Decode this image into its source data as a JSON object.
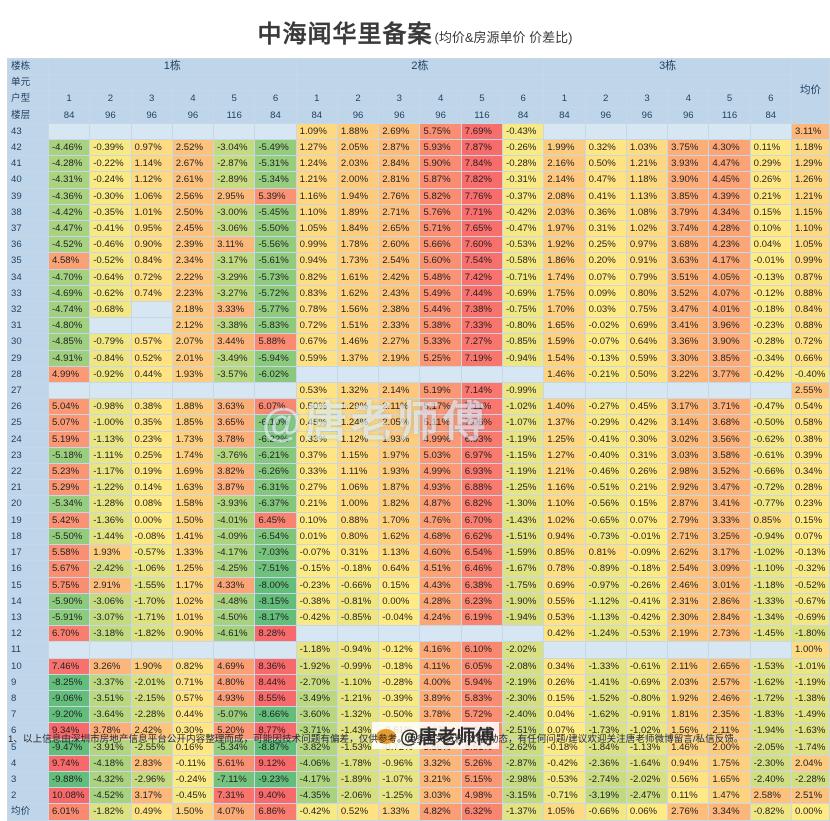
{
  "title": {
    "main": "中海闻华里备案",
    "sub": "(均价&房源单价 价差比)"
  },
  "header": {
    "row_labels": [
      "楼栋",
      "单元",
      "户型",
      "楼层"
    ],
    "buildings": [
      "1栋",
      "2栋",
      "3栋"
    ],
    "units": [
      "1",
      "2",
      "3",
      "4",
      "5",
      "6"
    ],
    "areas": [
      "84",
      "96",
      "96",
      "96",
      "116",
      "84"
    ],
    "avg_col": "均价"
  },
  "rows": [
    {
      "floor": "43",
      "cells": [
        null,
        null,
        null,
        null,
        null,
        null,
        "1.09%",
        "1.88%",
        "2.69%",
        "5.75%",
        "7.69%",
        "-0.43%",
        null,
        null,
        null,
        null,
        null,
        null
      ],
      "avg": "3.11%"
    },
    {
      "floor": "42",
      "cells": [
        "-4.46%",
        "-0.39%",
        "0.97%",
        "2.52%",
        "-3.04%",
        "-5.49%",
        "1.27%",
        "2.05%",
        "2.87%",
        "5.93%",
        "7.87%",
        "-0.26%",
        "1.99%",
        "0.32%",
        "1.03%",
        "3.75%",
        "4.30%",
        "0.11%"
      ],
      "avg": "1.18%"
    },
    {
      "floor": "41",
      "cells": [
        "-4.28%",
        "-0.22%",
        "1.14%",
        "2.67%",
        "-2.87%",
        "-5.31%",
        "1.24%",
        "2.03%",
        "2.84%",
        "5.90%",
        "7.84%",
        "-0.28%",
        "2.16%",
        "0.50%",
        "1.21%",
        "3.93%",
        "4.47%",
        "0.29%"
      ],
      "avg": "1.29%"
    },
    {
      "floor": "40",
      "cells": [
        "-4.31%",
        "-0.24%",
        "1.12%",
        "2.61%",
        "-2.89%",
        "-5.34%",
        "1.21%",
        "2.00%",
        "2.81%",
        "5.87%",
        "7.82%",
        "-0.31%",
        "2.14%",
        "0.47%",
        "1.18%",
        "3.90%",
        "4.45%",
        "0.26%"
      ],
      "avg": "1.26%"
    },
    {
      "floor": "39",
      "cells": [
        "-4.36%",
        "-0.30%",
        "1.06%",
        "2.56%",
        "2.95%",
        "5.39%",
        "1.16%",
        "1.94%",
        "2.76%",
        "5.82%",
        "7.76%",
        "-0.37%",
        "2.08%",
        "0.41%",
        "1.13%",
        "3.85%",
        "4.39%",
        "0.21%"
      ],
      "avg": "1.21%"
    },
    {
      "floor": "38",
      "cells": [
        "-4.42%",
        "-0.35%",
        "1.01%",
        "2.50%",
        "-3.00%",
        "-5.45%",
        "1.10%",
        "1.89%",
        "2.71%",
        "5.76%",
        "7.71%",
        "-0.42%",
        "2.03%",
        "0.36%",
        "1.08%",
        "3.79%",
        "4.34%",
        "0.15%"
      ],
      "avg": "1.15%"
    },
    {
      "floor": "37",
      "cells": [
        "-4.47%",
        "-0.41%",
        "0.95%",
        "2.45%",
        "-3.06%",
        "-5.50%",
        "1.05%",
        "1.84%",
        "2.65%",
        "5.71%",
        "7.65%",
        "-0.47%",
        "1.97%",
        "0.31%",
        "1.02%",
        "3.74%",
        "4.28%",
        "0.10%"
      ],
      "avg": "1.10%"
    },
    {
      "floor": "36",
      "cells": [
        "-4.52%",
        "-0.46%",
        "0.90%",
        "2.39%",
        "3.11%",
        "-5.56%",
        "0.99%",
        "1.78%",
        "2.60%",
        "5.66%",
        "7.60%",
        "-0.53%",
        "1.92%",
        "0.25%",
        "0.97%",
        "3.68%",
        "4.23%",
        "0.04%"
      ],
      "avg": "1.05%"
    },
    {
      "floor": "35",
      "cells": [
        "4.58%",
        "-0.52%",
        "0.84%",
        "2.34%",
        "-3.17%",
        "-5.61%",
        "0.94%",
        "1.73%",
        "2.54%",
        "5.60%",
        "7.54%",
        "-0.58%",
        "1.86%",
        "0.20%",
        "0.91%",
        "3.63%",
        "4.17%",
        "-0.01%"
      ],
      "avg": "0.99%"
    },
    {
      "floor": "34",
      "cells": [
        "-4.70%",
        "-0.64%",
        "0.72%",
        "2.22%",
        "-3.29%",
        "-5.73%",
        "0.82%",
        "1.61%",
        "2.42%",
        "5.48%",
        "7.42%",
        "-0.71%",
        "1.74%",
        "0.07%",
        "0.79%",
        "3.51%",
        "4.05%",
        "-0.13%"
      ],
      "avg": "0.87%"
    },
    {
      "floor": "33",
      "cells": [
        "-4.69%",
        "-0.62%",
        "0.74%",
        "2.23%",
        "-3.27%",
        "-5.72%",
        "0.83%",
        "1.62%",
        "2.43%",
        "5.49%",
        "7.44%",
        "-0.69%",
        "1.75%",
        "0.09%",
        "0.80%",
        "3.52%",
        "4.07%",
        "-0.12%"
      ],
      "avg": "0.88%"
    },
    {
      "floor": "32",
      "cells": [
        "-4.74%",
        "-0.68%",
        null,
        "2.18%",
        "3.33%",
        "-5.77%",
        "0.78%",
        "1.56%",
        "2.38%",
        "5.44%",
        "7.38%",
        "-0.75%",
        "1.70%",
        "0.03%",
        "0.75%",
        "3.47%",
        "4.01%",
        "-0.18%"
      ],
      "avg": "0.84%"
    },
    {
      "floor": "31",
      "cells": [
        "-4.80%",
        null,
        null,
        "2.12%",
        "-3.38%",
        "-5.83%",
        "0.72%",
        "1.51%",
        "2.33%",
        "5.38%",
        "7.33%",
        "-0.80%",
        "1.65%",
        "-0.02%",
        "0.69%",
        "3.41%",
        "3.96%",
        "-0.23%"
      ],
      "avg": "0.88%"
    },
    {
      "floor": "30",
      "cells": [
        "-4.85%",
        "-0.79%",
        "0.57%",
        "2.07%",
        "3.44%",
        "5.88%",
        "0.67%",
        "1.46%",
        "2.27%",
        "5.33%",
        "7.27%",
        "-0.85%",
        "1.59%",
        "-0.07%",
        "0.64%",
        "3.36%",
        "3.90%",
        "-0.28%"
      ],
      "avg": "0.72%"
    },
    {
      "floor": "29",
      "cells": [
        "-4.91%",
        "-0.84%",
        "0.52%",
        "2.01%",
        "-3.49%",
        "-5.94%",
        "0.59%",
        "1.37%",
        "2.19%",
        "5.25%",
        "7.19%",
        "-0.94%",
        "1.54%",
        "-0.13%",
        "0.59%",
        "3.30%",
        "3.85%",
        "-0.34%"
      ],
      "avg": "0.66%"
    },
    {
      "floor": "28",
      "cells": [
        "4.99%",
        "-0.92%",
        "0.44%",
        "1.93%",
        "-3.57%",
        "-6.02%",
        null,
        null,
        null,
        null,
        null,
        null,
        "1.46%",
        "-0.21%",
        "0.50%",
        "3.22%",
        "3.77%",
        "-0.42%"
      ],
      "avg": "-0.40%"
    },
    {
      "floor": "27",
      "cells": [
        null,
        null,
        null,
        null,
        null,
        null,
        "0.53%",
        "1.32%",
        "2.14%",
        "5.19%",
        "7.14%",
        "-0.99%",
        null,
        null,
        null,
        null,
        null,
        null
      ],
      "avg": "2.55%"
    },
    {
      "floor": "26",
      "cells": [
        "5.04%",
        "-0.98%",
        "0.38%",
        "1.88%",
        "3.63%",
        "6.07%",
        "0.50%",
        "1.29%",
        "2.11%",
        "5.17%",
        "7.11%",
        "-1.02%",
        "1.40%",
        "-0.27%",
        "0.45%",
        "3.17%",
        "3.71%",
        "-0.47%"
      ],
      "avg": "0.54%"
    },
    {
      "floor": "25",
      "cells": [
        "5.07%",
        "-1.00%",
        "0.35%",
        "1.85%",
        "3.65%",
        "-6.10%",
        "0.45%",
        "1.24%",
        "2.05%",
        "5.11%",
        "7.06%",
        "-1.07%",
        "1.37%",
        "-0.29%",
        "0.42%",
        "3.14%",
        "3.68%",
        "-0.50%"
      ],
      "avg": "0.58%"
    },
    {
      "floor": "24",
      "cells": [
        "5.19%",
        "-1.13%",
        "0.23%",
        "1.73%",
        "3.78%",
        "-6.22%",
        "0.33%",
        "1.12%",
        "1.93%",
        "4.99%",
        "6.93%",
        "-1.19%",
        "1.25%",
        "-0.41%",
        "0.30%",
        "3.02%",
        "3.56%",
        "-0.62%"
      ],
      "avg": "0.38%"
    },
    {
      "floor": "23",
      "cells": [
        "-5.18%",
        "-1.11%",
        "0.25%",
        "1.74%",
        "-3.76%",
        "-6.21%",
        "0.37%",
        "1.15%",
        "1.97%",
        "5.03%",
        "6.97%",
        "-1.15%",
        "1.27%",
        "-0.40%",
        "0.31%",
        "3.03%",
        "3.58%",
        "-0.61%"
      ],
      "avg": "0.39%"
    },
    {
      "floor": "22",
      "cells": [
        "5.23%",
        "-1.17%",
        "0.19%",
        "1.69%",
        "3.82%",
        "-6.26%",
        "0.33%",
        "1.11%",
        "1.93%",
        "4.99%",
        "6.93%",
        "-1.19%",
        "1.21%",
        "-0.46%",
        "0.26%",
        "2.98%",
        "3.52%",
        "-0.66%"
      ],
      "avg": "0.34%"
    },
    {
      "floor": "21",
      "cells": [
        "5.29%",
        "-1.22%",
        "0.14%",
        "1.63%",
        "3.87%",
        "-6.31%",
        "0.27%",
        "1.06%",
        "1.87%",
        "4.93%",
        "6.88%",
        "-1.25%",
        "1.16%",
        "-0.51%",
        "0.21%",
        "2.92%",
        "3.47%",
        "-0.72%"
      ],
      "avg": "0.28%"
    },
    {
      "floor": "20",
      "cells": [
        "-5.34%",
        "-1.28%",
        "0.08%",
        "1.58%",
        "-3.93%",
        "-6.37%",
        "0.21%",
        "1.00%",
        "1.82%",
        "4.87%",
        "6.82%",
        "-1.30%",
        "1.10%",
        "-0.56%",
        "0.15%",
        "2.87%",
        "3.41%",
        "-0.77%"
      ],
      "avg": "0.23%"
    },
    {
      "floor": "19",
      "cells": [
        "5.42%",
        "-1.36%",
        "0.00%",
        "1.50%",
        "-4.01%",
        "6.45%",
        "0.10%",
        "0.88%",
        "1.70%",
        "4.76%",
        "6.70%",
        "-1.43%",
        "1.02%",
        "-0.65%",
        "0.07%",
        "2.79%",
        "3.33%",
        "0.85%"
      ],
      "avg": "0.15%"
    },
    {
      "floor": "18",
      "cells": [
        "-5.50%",
        "-1.44%",
        "-0.08%",
        "1.41%",
        "-4.09%",
        "-6.54%",
        "0.01%",
        "0.80%",
        "1.62%",
        "4.68%",
        "6.62%",
        "-1.51%",
        "0.94%",
        "-0.73%",
        "-0.01%",
        "2.71%",
        "3.25%",
        "-0.94%"
      ],
      "avg": "0.07%"
    },
    {
      "floor": "17",
      "cells": [
        "5.58%",
        "1.93%",
        "-0.57%",
        "1.33%",
        "-4.17%",
        "-7.03%",
        "-0.07%",
        "0.31%",
        "1.13%",
        "4.60%",
        "6.54%",
        "-1.59%",
        "0.85%",
        "0.81%",
        "-0.09%",
        "2.62%",
        "3.17%",
        "-1.02%"
      ],
      "avg": "-0.13%"
    },
    {
      "floor": "16",
      "cells": [
        "5.67%",
        "-2.42%",
        "-1.06%",
        "1.25%",
        "-4.25%",
        "-7.51%",
        "-0.15%",
        "-0.18%",
        "0.64%",
        "4.51%",
        "6.46%",
        "-1.67%",
        "0.78%",
        "-0.89%",
        "-0.18%",
        "2.54%",
        "3.09%",
        "-1.10%"
      ],
      "avg": "-0.32%"
    },
    {
      "floor": "15",
      "cells": [
        "5.75%",
        "2.91%",
        "-1.55%",
        "1.17%",
        "4.33%",
        "-8.00%",
        "-0.23%",
        "-0.66%",
        "0.15%",
        "4.43%",
        "6.38%",
        "-1.75%",
        "0.69%",
        "-0.97%",
        "-0.26%",
        "2.46%",
        "3.01%",
        "-1.18%"
      ],
      "avg": "-0.52%"
    },
    {
      "floor": "14",
      "cells": [
        "-5.90%",
        "-3.06%",
        "-1.70%",
        "1.02%",
        "-4.48%",
        "-8.15%",
        "-0.38%",
        "-0.81%",
        "0.00%",
        "4.28%",
        "6.23%",
        "-1.90%",
        "0.55%",
        "-1.12%",
        "-0.41%",
        "2.31%",
        "2.86%",
        "-1.33%"
      ],
      "avg": "-0.67%"
    },
    {
      "floor": "13",
      "cells": [
        "-5.91%",
        "-3.07%",
        "-1.71%",
        "1.01%",
        "-4.50%",
        "-8.17%",
        "-0.42%",
        "-0.85%",
        "-0.04%",
        "4.24%",
        "6.19%",
        "-1.94%",
        "0.53%",
        "-1.13%",
        "-0.42%",
        "2.30%",
        "2.84%",
        "-1.34%"
      ],
      "avg": "-0.69%"
    },
    {
      "floor": "12",
      "cells": [
        "6.70%",
        "-3.18%",
        "-1.82%",
        "0.90%",
        "-4.61%",
        "8.28%",
        null,
        null,
        null,
        null,
        null,
        null,
        "0.42%",
        "-1.24%",
        "-0.53%",
        "2.19%",
        "2.73%",
        "-1.45%"
      ],
      "avg": "-1.80%"
    },
    {
      "floor": "11",
      "cells": [
        null,
        null,
        null,
        null,
        null,
        null,
        "-1.18%",
        "-0.94%",
        "-0.12%",
        "4.16%",
        "6.10%",
        "-2.02%",
        null,
        null,
        null,
        null,
        null,
        null
      ],
      "avg": "1.00%"
    },
    {
      "floor": "10",
      "cells": [
        "7.46%",
        "3.26%",
        "1.90%",
        "0.82%",
        "4.69%",
        "8.36%",
        "-1.92%",
        "-0.99%",
        "-0.18%",
        "4.11%",
        "6.05%",
        "-2.08%",
        "0.34%",
        "-1.33%",
        "-0.61%",
        "2.11%",
        "2.65%",
        "-1.53%"
      ],
      "avg": "-1.01%"
    },
    {
      "floor": "9",
      "cells": [
        "-8.25%",
        "-3.37%",
        "-2.01%",
        "0.71%",
        "4.80%",
        "8.44%",
        "-2.70%",
        "-1.10%",
        "-0.28%",
        "4.00%",
        "5.94%",
        "-2.19%",
        "0.26%",
        "-1.41%",
        "-0.69%",
        "2.03%",
        "2.57%",
        "-1.62%"
      ],
      "avg": "-1.19%"
    },
    {
      "floor": "8",
      "cells": [
        "-9.06%",
        "-3.51%",
        "-2.15%",
        "0.57%",
        "4.93%",
        "8.55%",
        "-3.49%",
        "-1.21%",
        "-0.39%",
        "3.89%",
        "5.83%",
        "-2.30%",
        "0.15%",
        "-1.52%",
        "-0.80%",
        "1.92%",
        "2.46%",
        "-1.72%"
      ],
      "avg": "-1.38%"
    },
    {
      "floor": "7",
      "cells": [
        "-9.20%",
        "-3.64%",
        "-2.28%",
        "0.44%",
        "-5.07%",
        "-8.66%",
        "-3.60%",
        "-1.32%",
        "-0.50%",
        "3.78%",
        "5.72%",
        "-2.40%",
        "0.04%",
        "-1.62%",
        "-0.91%",
        "1.81%",
        "2.35%",
        "-1.83%"
      ],
      "avg": "-1.49%"
    },
    {
      "floor": "6",
      "cells": [
        "9.34%",
        "3.78%",
        "2.42%",
        "0.30%",
        "5.20%",
        "8.77%",
        "-3.71%",
        "-1.43%",
        "-0.61%",
        "3.67%",
        "5.61%",
        "-2.51%",
        "0.07%",
        "-1.73%",
        "-1.02%",
        "1.56%",
        "2.11%",
        "-1.94%"
      ],
      "avg": "-1.63%"
    },
    {
      "floor": "5",
      "cells": [
        "-9.47%",
        "-3.91%",
        "-2.55%",
        "0.16%",
        "-5.34%",
        "-8.87%",
        "-3.82%",
        "-1.53%",
        "-0.72%",
        "3.56%",
        "5.51%",
        "-2.62%",
        "-0.18%",
        "-1.84%",
        "-1.13%",
        "1.46%",
        "2.00%",
        "-2.05%"
      ],
      "avg": "-1.74%"
    },
    {
      "floor": "4",
      "cells": [
        "9.74%",
        "-4.18%",
        "2.83%",
        "-0.11%",
        "5.61%",
        "9.12%",
        "-4.06%",
        "-1.78%",
        "-0.96%",
        "3.32%",
        "5.26%",
        "-2.87%",
        "-0.42%",
        "-2.36%",
        "-1.64%",
        "0.94%",
        "1.75%",
        "-2.30%"
      ],
      "avg": "2.04%"
    },
    {
      "floor": "3",
      "cells": [
        "-9.88%",
        "-4.32%",
        "-2.96%",
        "-0.24%",
        "-7.11%",
        "-9.23%",
        "-4.17%",
        "-1.89%",
        "-1.07%",
        "3.21%",
        "5.15%",
        "-2.98%",
        "-0.53%",
        "-2.74%",
        "-2.02%",
        "0.56%",
        "1.65%",
        "-2.40%"
      ],
      "avg": "-2.28%"
    },
    {
      "floor": "2",
      "cells": [
        "10.08%",
        "-4.52%",
        "3.17%",
        "-0.45%",
        "7.31%",
        "9.40%",
        "-4.35%",
        "-2.06%",
        "-1.25%",
        "3.03%",
        "4.98%",
        "-3.15%",
        "-0.71%",
        "-3.19%",
        "-2.47%",
        "0.11%",
        "1.47%",
        "2.58%"
      ],
      "avg": "2.51%"
    },
    {
      "floor": "均价",
      "cells": [
        "6.01%",
        "-1.82%",
        "0.49%",
        "1.50%",
        "4.07%",
        "6.86%",
        "-0.42%",
        "0.52%",
        "1.33%",
        "4.82%",
        "6.32%",
        "-1.37%",
        "1.05%",
        "-0.66%",
        "0.06%",
        "2.76%",
        "3.34%",
        "-0.82%"
      ],
      "avg": "0.00%"
    }
  ],
  "footnote": "1、以上信息由深圳市房地产信息平台公开内容整理而成，可能因技术问题有偏差，仅供参考。更多相关资料/攻略/动态，有任何问题/建议欢迎关注唐老师微博留言/私信反馈。",
  "watermark": {
    "at": "@",
    "name": "唐老师傅"
  },
  "weibo_mark": "@唐老师傅",
  "colors": {
    "header_bg": "#bfd6ea",
    "blank_cell": "#d6e6f2",
    "scale_low": "#63be7b",
    "scale_mid": "#ffeb84",
    "scale_high": "#f8696b"
  }
}
